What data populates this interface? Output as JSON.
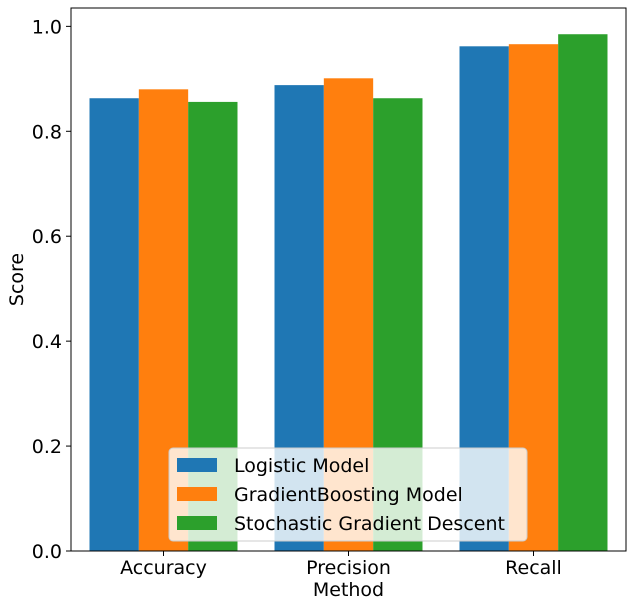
{
  "chart_data": {
    "type": "bar",
    "title": "",
    "xlabel": "Method",
    "ylabel": "Score",
    "categories": [
      "Accuracy",
      "Precision",
      "Recall"
    ],
    "series": [
      {
        "name": "Logistic Model",
        "color": "#1f77b4",
        "values": [
          0.863,
          0.888,
          0.962
        ]
      },
      {
        "name": "GradientBoosting Model",
        "color": "#ff7f0e",
        "values": [
          0.88,
          0.901,
          0.966
        ]
      },
      {
        "name": "Stochastic Gradient Descent",
        "color": "#2ca02c",
        "values": [
          0.856,
          0.863,
          0.985
        ]
      }
    ],
    "ylim": [
      0,
      1.035
    ],
    "yticks": [
      "0.0",
      "0.2",
      "0.4",
      "0.6",
      "0.8",
      "1.0"
    ],
    "grid": false,
    "legend_position": "lower-center"
  }
}
